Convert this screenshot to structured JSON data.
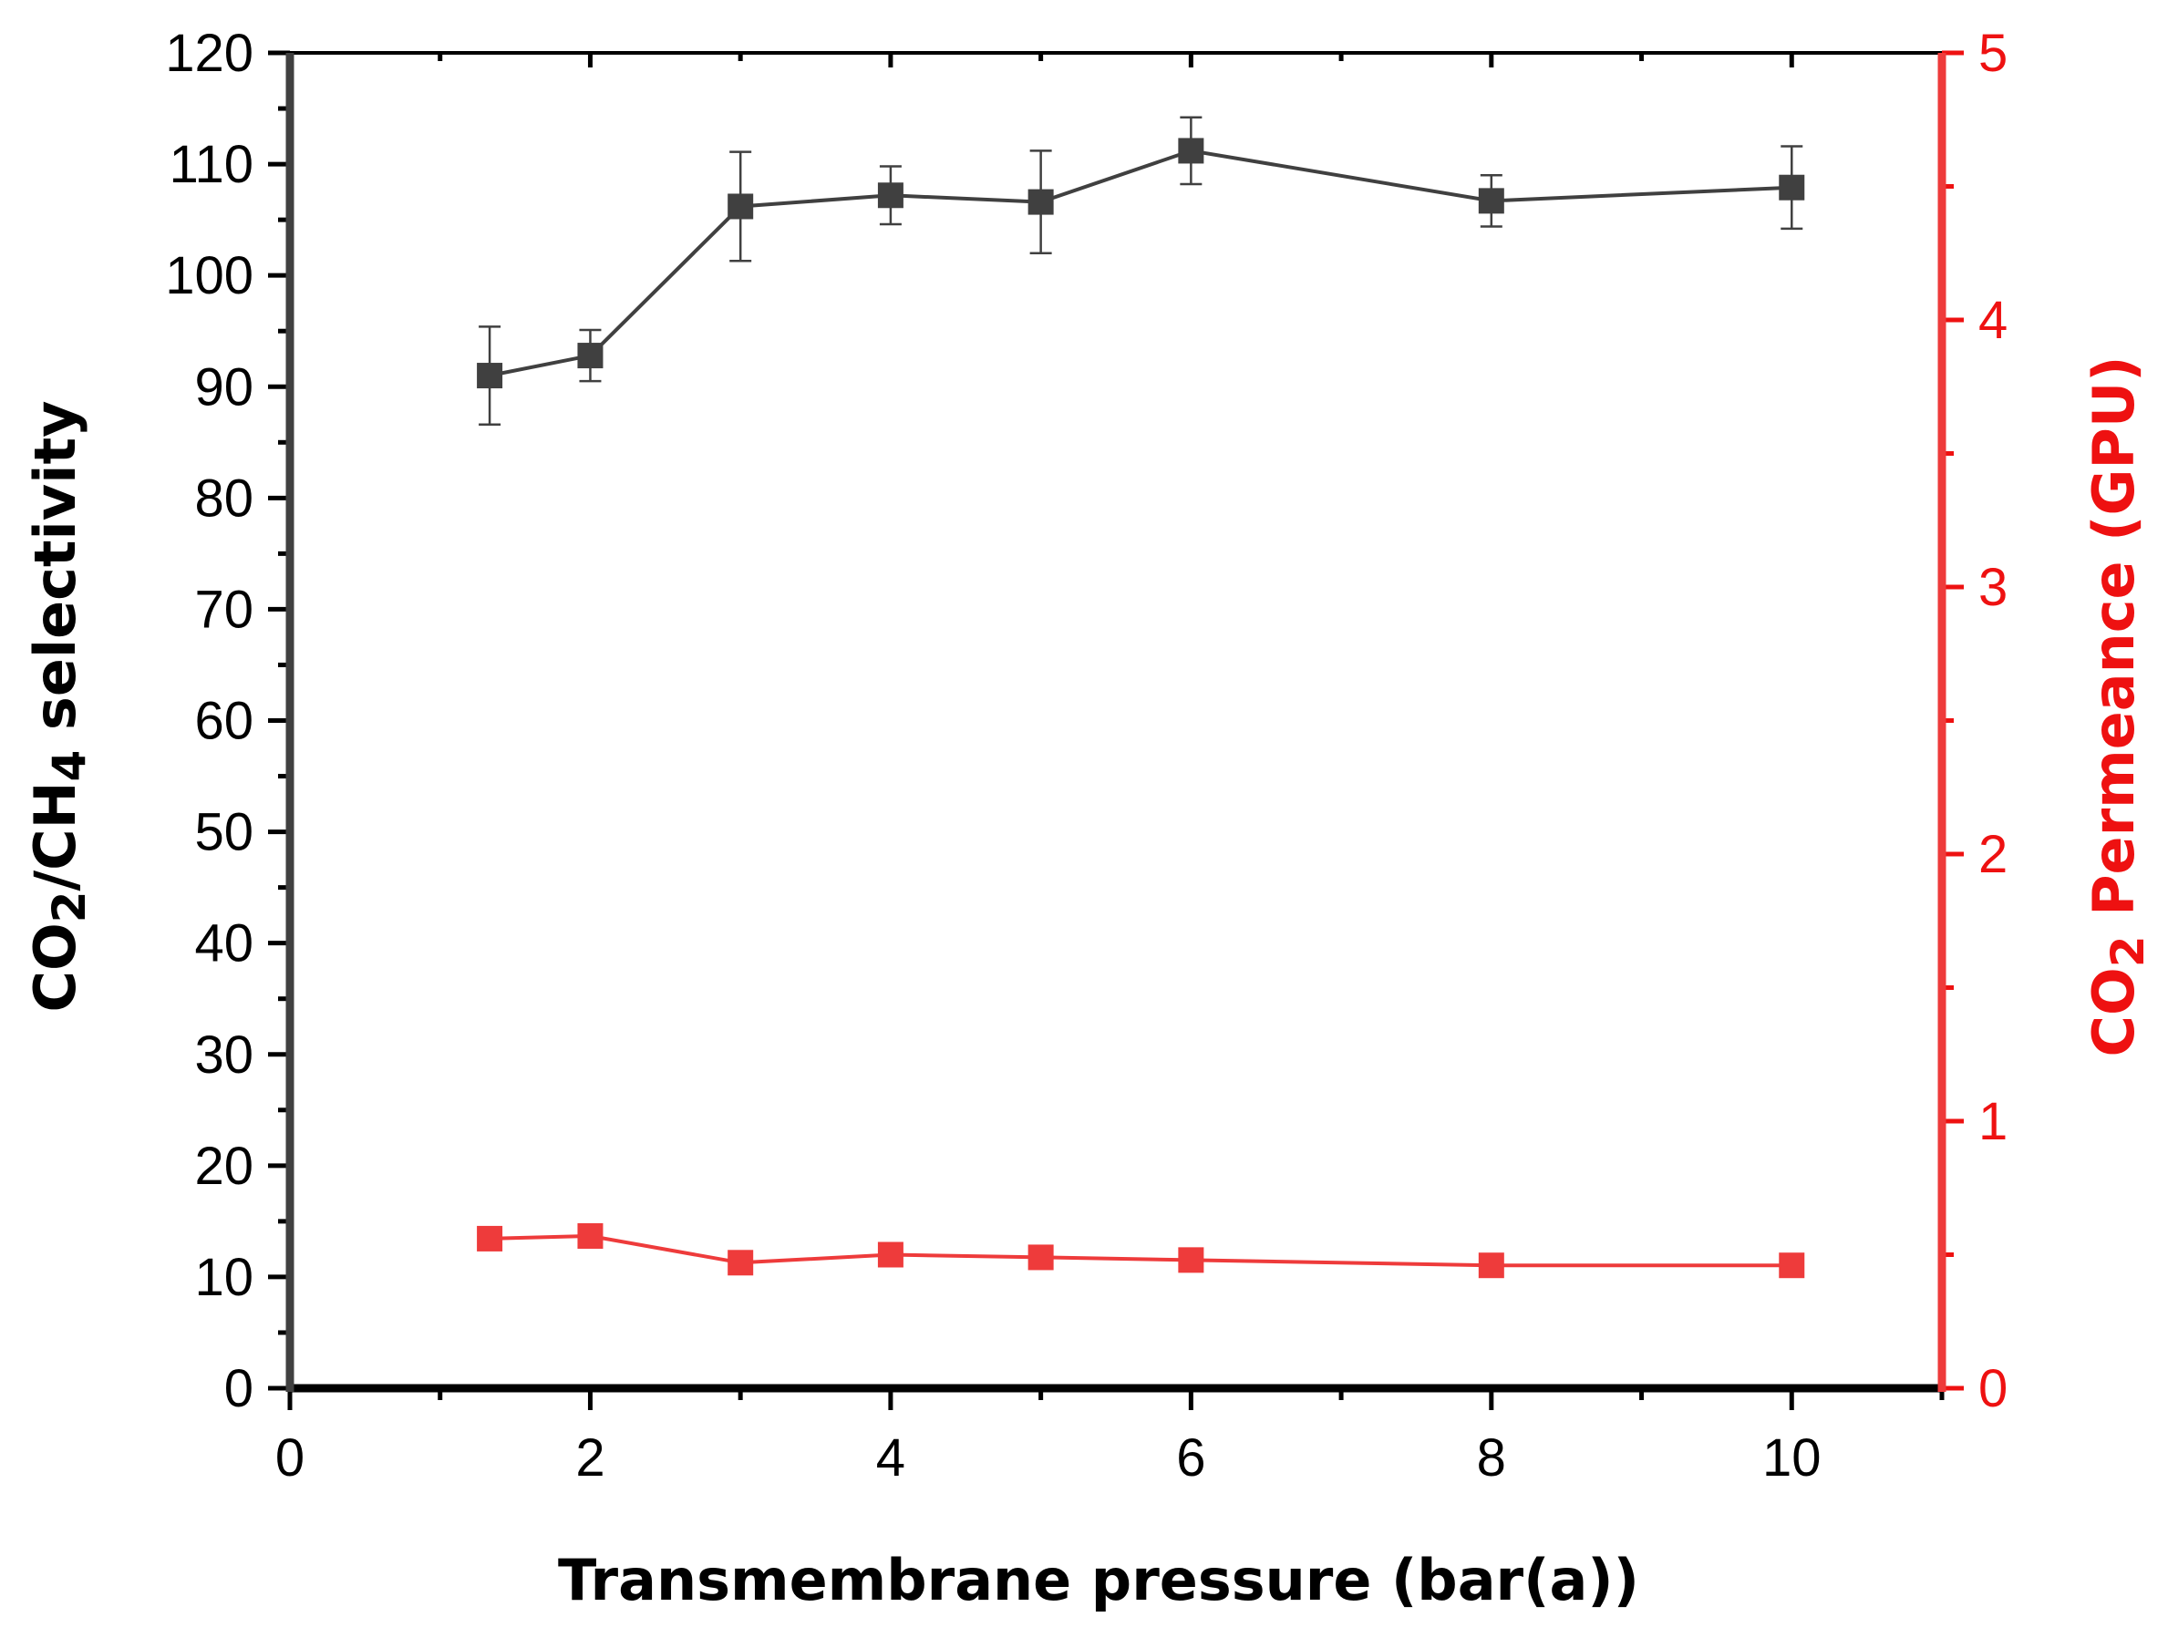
{
  "chart_data": {
    "type": "line",
    "title": "",
    "xlabel": "Transmembrane pressure (bar(a))",
    "ylabel": {
      "parts": [
        {
          "text": "CO",
          "sub": false
        },
        {
          "text": "2",
          "sub": true
        },
        {
          "text": "/CH",
          "sub": false
        },
        {
          "text": "4",
          "sub": true
        },
        {
          "text": " selectivity",
          "sub": false
        }
      ]
    },
    "y2label": {
      "parts": [
        {
          "text": "CO",
          "sub": false
        },
        {
          "text": "2",
          "sub": true
        },
        {
          "text": " Permeance (GPU)",
          "sub": false
        }
      ]
    },
    "xlim": [
      0,
      11
    ],
    "ylim": [
      0,
      120
    ],
    "y2lim": [
      0,
      5
    ],
    "xticks": [
      0,
      2,
      4,
      6,
      8,
      10
    ],
    "yticks": [
      0,
      10,
      20,
      30,
      40,
      50,
      60,
      70,
      80,
      90,
      100,
      110,
      120
    ],
    "y2ticks": [
      0,
      1,
      2,
      3,
      4,
      5
    ],
    "grid": false,
    "legend": "none",
    "series": [
      {
        "name": "CO2/CH4 selectivity",
        "axis": "left",
        "color": "#404040",
        "marker": "square",
        "x": [
          1.33,
          2,
          3,
          4,
          5,
          6,
          8,
          10
        ],
        "y": [
          91.0,
          92.8,
          106.2,
          107.2,
          106.6,
          111.2,
          106.7,
          107.9
        ],
        "error": [
          4.4,
          2.3,
          4.9,
          2.6,
          4.6,
          3.0,
          2.3,
          3.7
        ]
      },
      {
        "name": "CO2 Permeance (GPU)",
        "axis": "right",
        "color": "#ee3b3b",
        "marker": "square",
        "x": [
          1.33,
          2,
          3,
          4,
          5,
          6,
          8,
          10
        ],
        "y": [
          0.56,
          0.57,
          0.47,
          0.5,
          0.49,
          0.48,
          0.46,
          0.46
        ]
      }
    ]
  }
}
